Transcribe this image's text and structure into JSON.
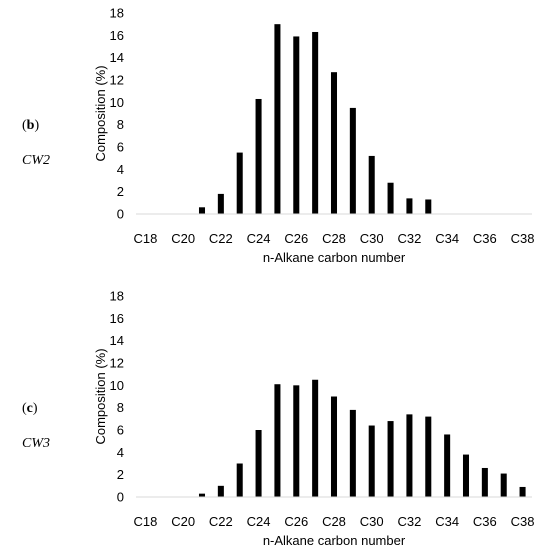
{
  "panels": [
    {
      "letter_open": "(",
      "letter": "b",
      "letter_close": ")",
      "sample": "CW2"
    },
    {
      "letter_open": "(",
      "letter": "c",
      "letter_close": ")",
      "sample": "CW3"
    }
  ],
  "chart_data": [
    {
      "type": "bar",
      "title": "",
      "xlabel": "n-Alkane carbon number",
      "ylabel": "Composition (%)",
      "ylim": [
        0,
        18
      ],
      "yticks": [
        0,
        2,
        4,
        6,
        8,
        10,
        12,
        14,
        16,
        18
      ],
      "x_tick_labels": [
        "C18",
        "C20",
        "C22",
        "C24",
        "C26",
        "C28",
        "C30",
        "C32",
        "C34",
        "C36",
        "C38"
      ],
      "categories": [
        "C18",
        "C19",
        "C20",
        "C21",
        "C22",
        "C23",
        "C24",
        "C25",
        "C26",
        "C27",
        "C28",
        "C29",
        "C30",
        "C31",
        "C32",
        "C33",
        "C34",
        "C35",
        "C36",
        "C37",
        "C38"
      ],
      "values": [
        0,
        0,
        0,
        0.6,
        1.8,
        5.5,
        10.3,
        17.0,
        15.9,
        16.3,
        12.7,
        9.5,
        5.2,
        2.8,
        1.4,
        1.3,
        0,
        0,
        0,
        0,
        0
      ],
      "grid": false,
      "color": "#000000"
    },
    {
      "type": "bar",
      "title": "",
      "xlabel": "n-Alkane carbon number",
      "ylabel": "Composition (%)",
      "ylim": [
        0,
        18
      ],
      "yticks": [
        0,
        2,
        4,
        6,
        8,
        10,
        12,
        14,
        16,
        18
      ],
      "x_tick_labels": [
        "C18",
        "C20",
        "C22",
        "C24",
        "C26",
        "C28",
        "C30",
        "C32",
        "C34",
        "C36",
        "C38"
      ],
      "categories": [
        "C18",
        "C19",
        "C20",
        "C21",
        "C22",
        "C23",
        "C24",
        "C25",
        "C26",
        "C27",
        "C28",
        "C29",
        "C30",
        "C31",
        "C32",
        "C33",
        "C34",
        "C35",
        "C36",
        "C37",
        "C38"
      ],
      "values": [
        0,
        0,
        0,
        0.3,
        1.0,
        3.0,
        6.0,
        10.1,
        10.0,
        10.5,
        9.0,
        7.8,
        6.4,
        6.8,
        7.4,
        7.2,
        5.6,
        3.8,
        2.6,
        2.1,
        0.9
      ],
      "grid": false,
      "color": "#000000"
    }
  ]
}
